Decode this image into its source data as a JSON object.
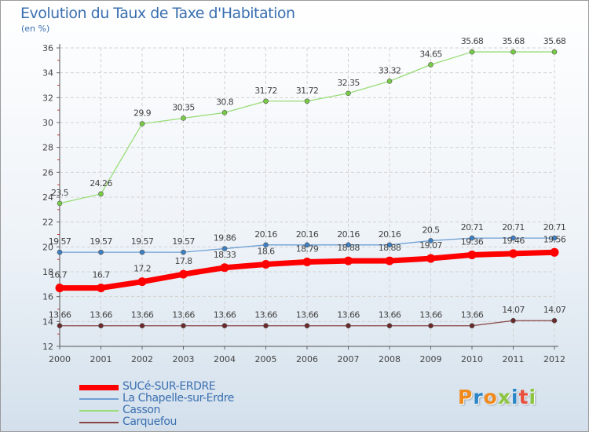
{
  "chart_data": {
    "type": "line",
    "title": "Evolution du Taux de Taxe d'Habitation",
    "subtitle": "(en %)",
    "xlabel": "",
    "ylabel": "",
    "x": [
      "2000",
      "2001",
      "2002",
      "2003",
      "2004",
      "2005",
      "2006",
      "2007",
      "2008",
      "2009",
      "2010",
      "2011",
      "2012"
    ],
    "ylim": [
      12,
      36
    ],
    "yticks": [
      "12",
      "14",
      "16",
      "18",
      "20",
      "22",
      "24",
      "26",
      "28",
      "30",
      "32",
      "34",
      "36"
    ],
    "grid": true,
    "legend_position": "bottom-left",
    "series": [
      {
        "name": "SUCé-SUR-ERDRE",
        "color": "#ff0000",
        "values": [
          16.7,
          16.7,
          17.2,
          17.8,
          18.33,
          18.6,
          18.79,
          18.88,
          18.88,
          19.07,
          19.36,
          19.46,
          19.56
        ],
        "labels": [
          "16.7",
          "16.7",
          "17.2",
          "17.8",
          "18.33",
          "18.6",
          "18.79",
          "18.88",
          "18.88",
          "19.07",
          "19.36",
          "19.46",
          "19.56"
        ]
      },
      {
        "name": "La Chapelle-sur-Erdre",
        "color": "#6699cc",
        "values": [
          19.57,
          19.57,
          19.57,
          19.57,
          19.86,
          20.16,
          20.16,
          20.16,
          20.16,
          20.5,
          20.71,
          20.71,
          20.71
        ],
        "labels": [
          "19.57",
          "19.57",
          "19.57",
          "19.57",
          "19.86",
          "20.16",
          "20.16",
          "20.16",
          "20.16",
          "20.5",
          "20.71",
          "20.71",
          "20.71"
        ]
      },
      {
        "name": "Casson",
        "color": "#99dd77",
        "values": [
          23.5,
          24.26,
          29.9,
          30.35,
          30.8,
          31.72,
          31.72,
          32.35,
          33.32,
          34.65,
          35.68,
          35.68,
          35.68
        ],
        "labels": [
          "23.5",
          "24.26",
          "29.9",
          "30.35",
          "30.8",
          "31.72",
          "31.72",
          "32.35",
          "33.32",
          "34.65",
          "35.68",
          "35.68",
          "35.68"
        ]
      },
      {
        "name": "Carquefou",
        "color": "#884444",
        "values": [
          13.66,
          13.66,
          13.66,
          13.66,
          13.66,
          13.66,
          13.66,
          13.66,
          13.66,
          13.66,
          13.66,
          14.07,
          14.07
        ],
        "labels": [
          "13.66",
          "13.66",
          "13.66",
          "13.66",
          "13.66",
          "13.66",
          "13.66",
          "13.66",
          "13.66",
          "13.66",
          "13.66",
          "14.07",
          "14.07"
        ]
      }
    ]
  },
  "logo": {
    "text": "Proxiti",
    "colors": [
      "#f08a1c",
      "#2a86c8",
      "#f08a1c",
      "#8cc63f",
      "#2a86c8",
      "#e84e3c",
      "#8cc63f"
    ]
  }
}
